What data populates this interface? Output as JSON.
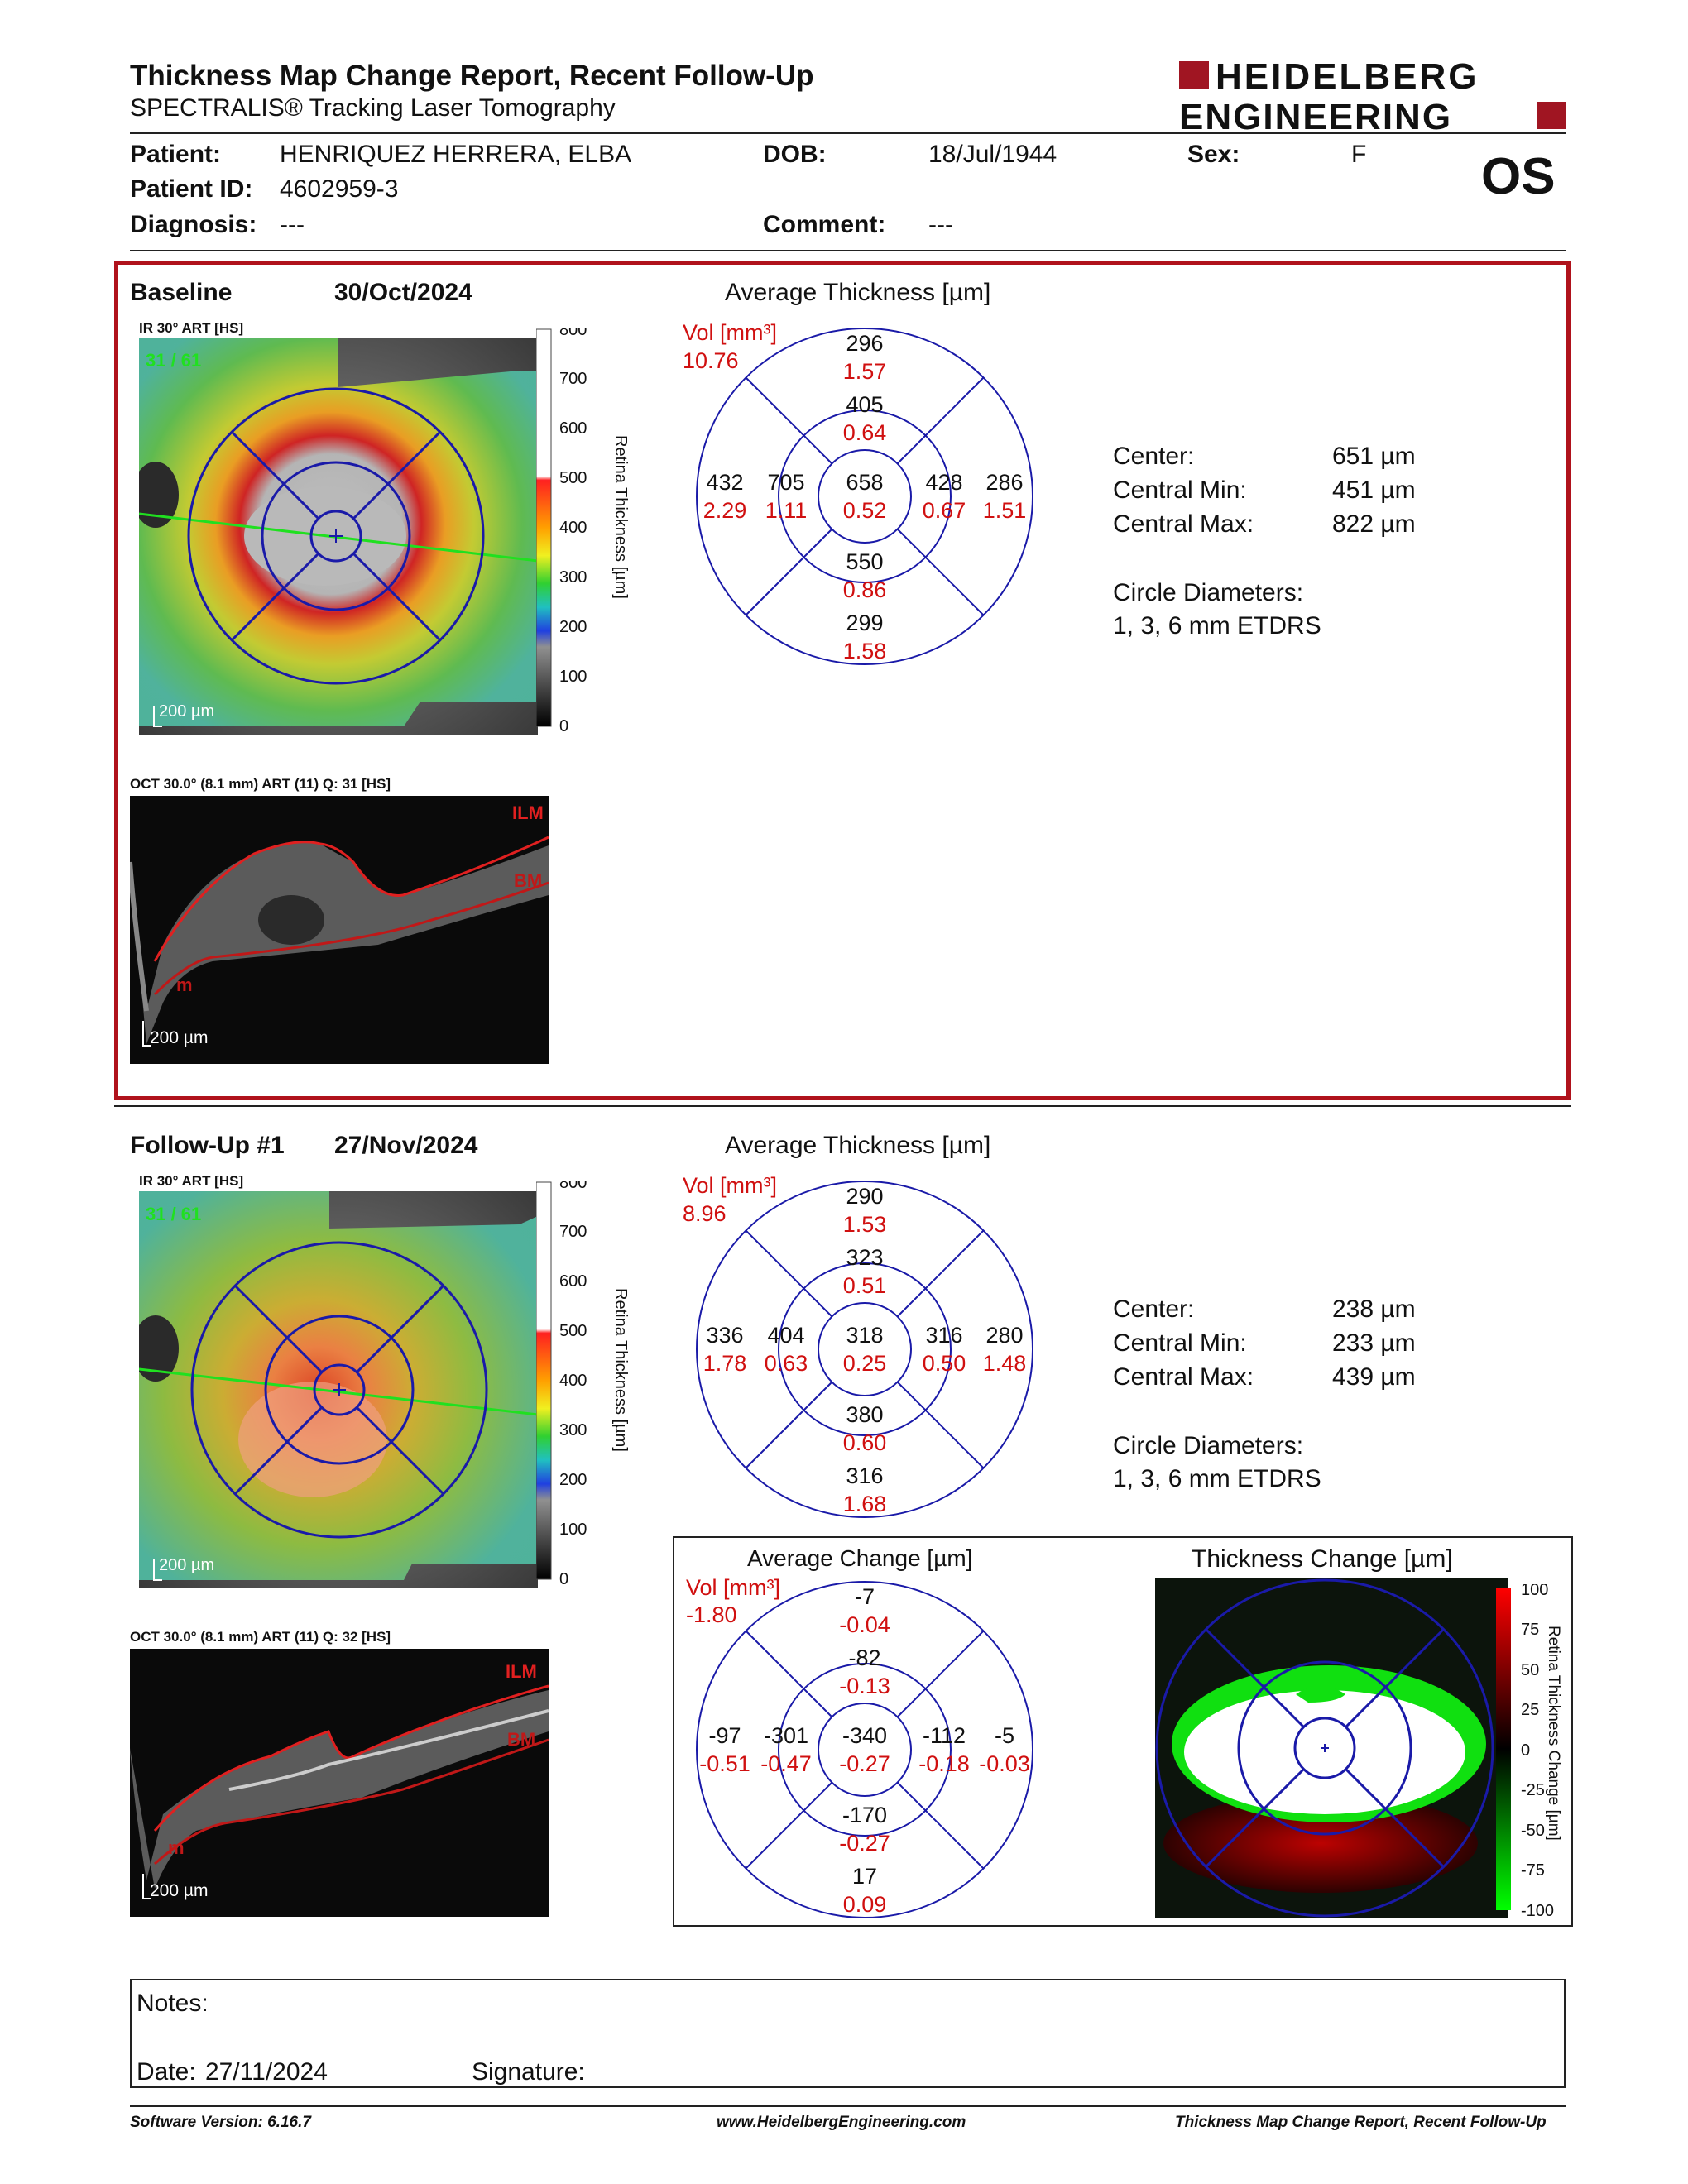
{
  "header": {
    "title": "Thickness Map Change Report, Recent Follow-Up",
    "subtitle": "SPECTRALIS® Tracking Laser Tomography",
    "logo_line1": "HEIDELBERG",
    "logo_line2": "ENGINEERING",
    "eye": "OS"
  },
  "patient": {
    "name_label": "Patient:",
    "name": "HENRIQUEZ HERRERA, ELBA",
    "dob_label": "DOB:",
    "dob": "18/Jul/1944",
    "sex_label": "Sex:",
    "sex": "F",
    "id_label": "Patient ID:",
    "id": "4602959-3",
    "diagnosis_label": "Diagnosis:",
    "diagnosis": "---",
    "comment_label": "Comment:",
    "comment": "---"
  },
  "baseline": {
    "label": "Baseline",
    "date": "30/Oct/2024",
    "ir_label": "IR 30° ART [HS]",
    "ir_counter": "31 / 61",
    "scale_label": "200 µm",
    "oct_label": "OCT 30.0° (8.1 mm) ART (11) Q: 31 [HS]",
    "oct_scale": "200 µm",
    "ilm": "ILM",
    "bm": "BM",
    "m": "m",
    "avg_title": "Average Thickness [µm]",
    "vol_label": "Vol [mm³]",
    "vol_total": "10.76",
    "grid": {
      "outer_top": [
        "296",
        "1.57"
      ],
      "inner_top": [
        "405",
        "0.64"
      ],
      "outer_left": [
        "432",
        "2.29"
      ],
      "inner_left": [
        "705",
        "1.11"
      ],
      "center": [
        "658",
        "0.52"
      ],
      "inner_right": [
        "428",
        "0.67"
      ],
      "outer_right": [
        "286",
        "1.51"
      ],
      "inner_bottom": [
        "550",
        "0.86"
      ],
      "outer_bottom": [
        "299",
        "1.58"
      ]
    },
    "stats": {
      "center_label": "Center:",
      "center": "651 µm",
      "min_label": "Central Min:",
      "min": "451 µm",
      "max_label": "Central Max:",
      "max": "822 µm",
      "diam_label": "Circle Diameters:",
      "diam": "1, 3, 6 mm ETDRS"
    }
  },
  "followup": {
    "label": "Follow-Up #1",
    "date": "27/Nov/2024",
    "ir_label": "IR 30° ART [HS]",
    "ir_counter": "31 / 61",
    "scale_label": "200 µm",
    "oct_label": "OCT 30.0° (8.1 mm) ART (11) Q: 32 [HS]",
    "oct_scale": "200 µm",
    "ilm": "ILM",
    "bm": "BM",
    "m": "m",
    "avg_title": "Average Thickness [µm]",
    "vol_label": "Vol [mm³]",
    "vol_total": "8.96",
    "grid": {
      "outer_top": [
        "290",
        "1.53"
      ],
      "inner_top": [
        "323",
        "0.51"
      ],
      "outer_left": [
        "336",
        "1.78"
      ],
      "inner_left": [
        "404",
        "0.63"
      ],
      "center": [
        "318",
        "0.25"
      ],
      "inner_right": [
        "316",
        "0.50"
      ],
      "outer_right": [
        "280",
        "1.48"
      ],
      "inner_bottom": [
        "380",
        "0.60"
      ],
      "outer_bottom": [
        "316",
        "1.68"
      ]
    },
    "stats": {
      "center_label": "Center:",
      "center": "238 µm",
      "min_label": "Central Min:",
      "min": "233 µm",
      "max_label": "Central Max:",
      "max": "439 µm",
      "diam_label": "Circle Diameters:",
      "diam": "1, 3, 6 mm ETDRS"
    }
  },
  "change": {
    "avg_title": "Average Change [µm]",
    "vol_label": "Vol [mm³]",
    "vol_total": "-1.80",
    "grid": {
      "outer_top": [
        "-7",
        "-0.04"
      ],
      "inner_top": [
        "-82",
        "-0.13"
      ],
      "outer_left": [
        "-97",
        "-0.51"
      ],
      "inner_left": [
        "-301",
        "-0.47"
      ],
      "center": [
        "-340",
        "-0.27"
      ],
      "inner_right": [
        "-112",
        "-0.18"
      ],
      "outer_right": [
        "-5",
        "-0.03"
      ],
      "inner_bottom": [
        "-170",
        "-0.27"
      ],
      "outer_bottom": [
        "17",
        "0.09"
      ]
    },
    "map_title": "Thickness Change [µm]",
    "colorbar_label": "Retina Thickness Change [µm]",
    "colorbar_ticks": [
      "100",
      "75",
      "50",
      "25",
      "0",
      "-25",
      "-50",
      "-75",
      "-100"
    ]
  },
  "thickness_colorbar": {
    "label": "Retina Thickness [µm]",
    "ticks": [
      "800",
      "700",
      "600",
      "500",
      "400",
      "300",
      "200",
      "100",
      "0"
    ]
  },
  "notes": {
    "notes_label": "Notes:",
    "date_label": "Date:",
    "date": "27/11/2024",
    "signature_label": "Signature:"
  },
  "footer": {
    "software": "Software Version: 6.16.7",
    "website": "www.HeidelbergEngineering.com",
    "report_name": "Thickness Map Change Report, Recent Follow-Up"
  },
  "colors": {
    "frame_red": "#b0121c",
    "grid_blue": "#1a1aa8",
    "value_red": "#d01010"
  }
}
